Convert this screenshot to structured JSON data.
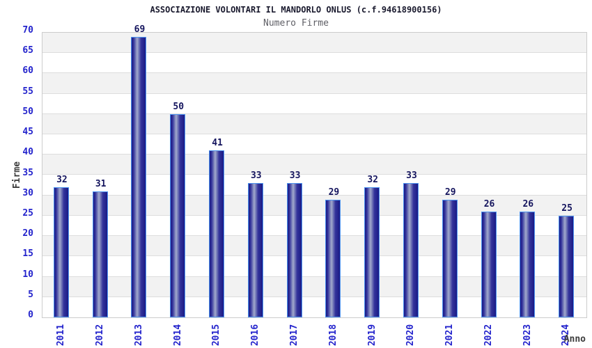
{
  "chart_data": {
    "type": "bar",
    "title": "ASSOCIAZIONE VOLONTARI IL MANDORLO ONLUS (c.f.94618900156)",
    "subtitle": "Numero Firme",
    "xlabel": "Anno",
    "ylabel": "Firme",
    "categories": [
      "2011",
      "2012",
      "2013",
      "2014",
      "2015",
      "2016",
      "2017",
      "2018",
      "2019",
      "2020",
      "2021",
      "2022",
      "2023",
      "2024"
    ],
    "values": [
      32,
      31,
      69,
      50,
      41,
      33,
      33,
      29,
      32,
      33,
      29,
      26,
      26,
      25
    ],
    "ylim": [
      0,
      70
    ],
    "ytick_step": 5,
    "legend": "none",
    "grid": "horizontal alternating bands of 5 units, gray and white, thin gridline each 5",
    "bar_value_labels_shown": true,
    "x_tick_rotation_degrees": 90,
    "colors": {
      "bar_dark": "#1A1A85",
      "bar_mid": "#33339B",
      "bar_light": "#A2AACC",
      "bar_border": "#4D94F0",
      "axis_tick_text": "#2323CC",
      "value_label_text": "#15155E",
      "title_text": "#1A1A2E",
      "subtitle_text": "#5F5F66",
      "axis_name_text": "#3C3C3C",
      "band_gray": "#F2F2F2",
      "band_white": "#FFFFFF",
      "grid_line": "#DDDDDD",
      "plot_border": "#CCCCCC"
    }
  }
}
